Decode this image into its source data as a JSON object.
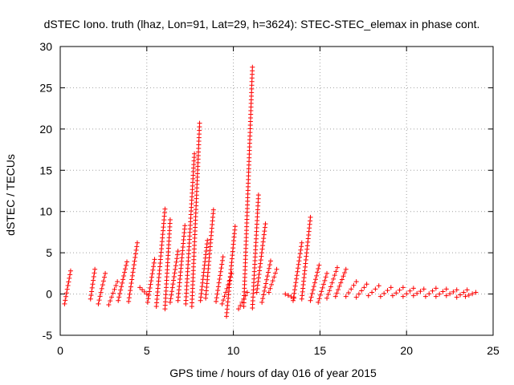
{
  "chart_data": {
    "type": "scatter",
    "title": "dSTEC Iono. truth (lhaz, Lon=91, Lat=29, h=3624): STEC-STEC_elemax in phase cont.",
    "xlabel": "GPS time / hours of day 016 of year 2015",
    "ylabel": "dSTEC  / TECUs",
    "xlim": [
      0,
      25
    ],
    "ylim": [
      -5,
      30
    ],
    "xticks": [
      0,
      5,
      10,
      15,
      20,
      25
    ],
    "yticks": [
      -5,
      0,
      5,
      10,
      15,
      20,
      25,
      30
    ],
    "grid": true,
    "marker": "+",
    "color": "#ff0000",
    "arcs": [
      {
        "x": [
          0.25,
          0.6
        ],
        "y": [
          -1.2,
          2.8
        ]
      },
      {
        "x": [
          1.75,
          2.0
        ],
        "y": [
          -0.6,
          3.0
        ]
      },
      {
        "x": [
          2.2,
          2.6
        ],
        "y": [
          -1.2,
          2.5
        ]
      },
      {
        "x": [
          2.8,
          3.3
        ],
        "y": [
          -1.3,
          1.5
        ]
      },
      {
        "x": [
          3.35,
          3.85
        ],
        "y": [
          -0.8,
          3.9
        ]
      },
      {
        "x": [
          3.95,
          4.45
        ],
        "y": [
          -0.9,
          6.2
        ]
      },
      {
        "x": [
          4.6,
          5.0
        ],
        "y": [
          0.8,
          0.0
        ]
      },
      {
        "x": [
          5.05,
          5.45
        ],
        "y": [
          -1.0,
          4.2
        ]
      },
      {
        "x": [
          5.55,
          6.05
        ],
        "y": [
          -1.5,
          10.3
        ]
      },
      {
        "x": [
          6.05,
          6.35
        ],
        "y": [
          -1.8,
          9.0
        ]
      },
      {
        "x": [
          6.35,
          6.8
        ],
        "y": [
          -1.0,
          5.2
        ]
      },
      {
        "x": [
          6.8,
          7.2
        ],
        "y": [
          -0.8,
          8.3
        ]
      },
      {
        "x": [
          7.25,
          7.75
        ],
        "y": [
          -1.2,
          17.0
        ]
      },
      {
        "x": [
          7.6,
          8.05
        ],
        "y": [
          -1.5,
          20.7
        ]
      },
      {
        "x": [
          8.1,
          8.5
        ],
        "y": [
          -0.8,
          6.5
        ]
      },
      {
        "x": [
          8.4,
          8.85
        ],
        "y": [
          -0.5,
          10.2
        ]
      },
      {
        "x": [
          9.0,
          9.4
        ],
        "y": [
          -0.9,
          4.5
        ]
      },
      {
        "x": [
          9.35,
          9.9
        ],
        "y": [
          -1.2,
          2.5
        ]
      },
      {
        "x": [
          9.6,
          10.1
        ],
        "y": [
          -2.7,
          8.2
        ]
      },
      {
        "x": [
          10.3,
          10.8
        ],
        "y": [
          -1.8,
          0.2
        ]
      },
      {
        "x": [
          10.6,
          11.1
        ],
        "y": [
          -1.5,
          27.5
        ]
      },
      {
        "x": [
          11.1,
          11.45
        ],
        "y": [
          -1.7,
          12.0
        ]
      },
      {
        "x": [
          11.35,
          11.85
        ],
        "y": [
          0.2,
          8.5
        ]
      },
      {
        "x": [
          11.65,
          12.15
        ],
        "y": [
          -1.0,
          4.0
        ]
      },
      {
        "x": [
          12.05,
          12.5
        ],
        "y": [
          0.2,
          3.0
        ]
      },
      {
        "x": [
          13.0,
          13.5
        ],
        "y": [
          0.0,
          -0.5
        ]
      },
      {
        "x": [
          13.45,
          13.95
        ],
        "y": [
          -0.8,
          6.2
        ]
      },
      {
        "x": [
          13.95,
          14.45
        ],
        "y": [
          -0.6,
          9.3
        ]
      },
      {
        "x": [
          14.45,
          14.95
        ],
        "y": [
          -0.8,
          3.5
        ]
      },
      {
        "x": [
          14.9,
          15.4
        ],
        "y": [
          -1.0,
          2.5
        ]
      },
      {
        "x": [
          15.4,
          16.0
        ],
        "y": [
          -0.5,
          3.2
        ]
      },
      {
        "x": [
          15.9,
          16.5
        ],
        "y": [
          -0.3,
          3.0
        ]
      },
      {
        "x": [
          16.5,
          17.1
        ],
        "y": [
          -0.3,
          1.5
        ]
      },
      {
        "x": [
          17.1,
          17.7
        ],
        "y": [
          -0.4,
          1.2
        ]
      },
      {
        "x": [
          17.8,
          18.4
        ],
        "y": [
          -0.2,
          1.0
        ]
      },
      {
        "x": [
          18.5,
          19.1
        ],
        "y": [
          -0.3,
          0.8
        ]
      },
      {
        "x": [
          19.2,
          19.8
        ],
        "y": [
          -0.2,
          0.8
        ]
      },
      {
        "x": [
          19.8,
          20.4
        ],
        "y": [
          -0.3,
          0.7
        ]
      },
      {
        "x": [
          20.4,
          21.0
        ],
        "y": [
          -0.2,
          0.6
        ]
      },
      {
        "x": [
          21.1,
          21.7
        ],
        "y": [
          -0.3,
          0.7
        ]
      },
      {
        "x": [
          21.7,
          22.3
        ],
        "y": [
          -0.3,
          0.6
        ]
      },
      {
        "x": [
          22.3,
          22.9
        ],
        "y": [
          -0.2,
          0.5
        ]
      },
      {
        "x": [
          22.9,
          23.5
        ],
        "y": [
          -0.4,
          0.5
        ]
      },
      {
        "x": [
          23.4,
          24.0
        ],
        "y": [
          -0.3,
          0.2
        ]
      }
    ]
  }
}
